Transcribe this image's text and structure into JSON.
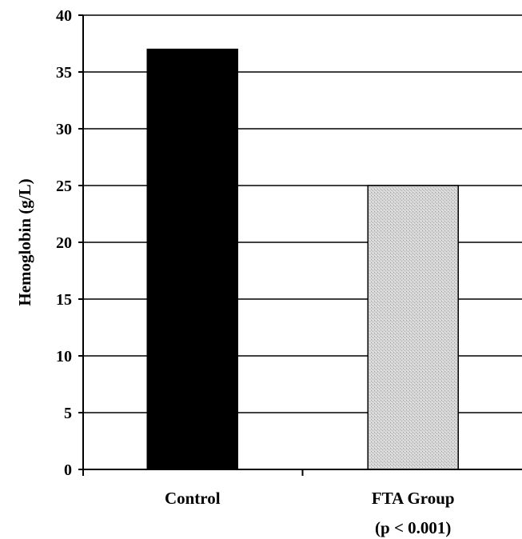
{
  "chart_data": {
    "type": "bar",
    "title": "",
    "xlabel": "",
    "ylabel": "Hemoglobin (g/L)",
    "ylim": [
      0,
      40
    ],
    "yticks": [
      0,
      5,
      10,
      15,
      20,
      25,
      30,
      35,
      40
    ],
    "grid": true,
    "categories": [
      "Control",
      "FTA Group"
    ],
    "category_notes": [
      "",
      "(p < 0.001)"
    ],
    "values": [
      37,
      25
    ],
    "colors": [
      "#000000",
      "#d4d4d4"
    ]
  }
}
